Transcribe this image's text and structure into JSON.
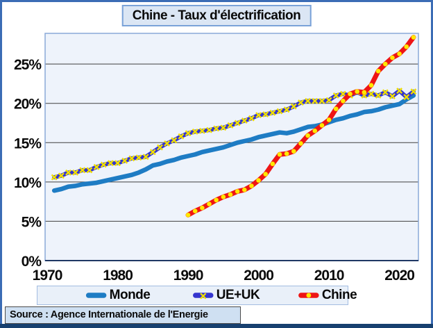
{
  "title": "Chine - Taux d'électrification",
  "source_text": "Source : Agence Internationale de l'Energie",
  "theme": {
    "frame_border": "#3b6cb5",
    "bottom_bar": "#17406f",
    "title_box_bg": "#dbe6f4",
    "title_box_border": "#7aa2d8",
    "plot_bg": "#eef3fb",
    "plot_border": "#8aa9d8",
    "plot_baseline": "#1f3864",
    "gridline": "#3f3f3f",
    "tick_text": "#0a0a0a",
    "legend_bg": "#e9f0f9",
    "legend_border": "#a3bce1",
    "source_bg": "#cfe0f2",
    "source_border": "#4a4a4a"
  },
  "chart_data": {
    "type": "line",
    "title": "Chine - Taux d'électrification",
    "xlabel": "",
    "ylabel": "",
    "x_unit": "year",
    "y_unit": "percent",
    "xlim": [
      1969.7,
      2022.7
    ],
    "ylim": [
      0,
      28.9
    ],
    "x_ticks": [
      1970,
      1980,
      1990,
      2000,
      2010,
      2020
    ],
    "y_ticks": [
      0,
      5,
      10,
      15,
      20,
      25
    ],
    "y_tick_labels": [
      "0%",
      "5%",
      "10%",
      "15%",
      "20%",
      "25%"
    ],
    "grid": true,
    "legend_position": "bottom",
    "series": [
      {
        "name": "Monde",
        "color": "#1e7cc4",
        "line_width": 6.5,
        "marker": "none",
        "marker_color": "",
        "x_start": 1971,
        "x_step": 1,
        "values": [
          8.9,
          9.1,
          9.4,
          9.5,
          9.7,
          9.8,
          9.9,
          10.1,
          10.3,
          10.5,
          10.7,
          10.9,
          11.2,
          11.6,
          12.1,
          12.3,
          12.6,
          12.8,
          13.1,
          13.3,
          13.5,
          13.8,
          14.0,
          14.2,
          14.4,
          14.7,
          15.0,
          15.2,
          15.4,
          15.7,
          15.9,
          16.1,
          16.3,
          16.2,
          16.4,
          16.7,
          17.0,
          17.1,
          17.3,
          17.6,
          17.9,
          18.1,
          18.4,
          18.6,
          18.9,
          19.0,
          19.2,
          19.5,
          19.7,
          19.9,
          20.5,
          21.0
        ]
      },
      {
        "name": "UE+UK",
        "color": "#3535cf",
        "line_width": 6,
        "marker": "x",
        "marker_color": "#f0df00",
        "x_start": 1971,
        "x_step": 1,
        "values": [
          10.6,
          10.8,
          11.2,
          11.2,
          11.5,
          11.5,
          11.9,
          12.2,
          12.4,
          12.4,
          12.7,
          13.0,
          13.1,
          13.2,
          13.8,
          14.4,
          14.9,
          15.3,
          15.8,
          16.2,
          16.4,
          16.5,
          16.6,
          16.8,
          16.9,
          17.2,
          17.5,
          17.8,
          18.1,
          18.5,
          18.6,
          18.8,
          19.0,
          19.2,
          19.6,
          20.1,
          20.3,
          20.3,
          20.3,
          20.4,
          21.0,
          21.2,
          21.0,
          21.4,
          21.0,
          21.2,
          21.0,
          21.4,
          20.9,
          21.6,
          20.8,
          21.5
        ]
      },
      {
        "name": "Chine",
        "color": "#ee1515",
        "line_width": 7,
        "marker": "dot",
        "marker_color": "#ffe800",
        "x_start": 1990,
        "x_step": 1,
        "values": [
          5.8,
          6.3,
          6.7,
          7.2,
          7.7,
          8.1,
          8.4,
          8.8,
          9.0,
          9.5,
          10.2,
          11.0,
          12.3,
          13.5,
          13.6,
          13.9,
          14.9,
          15.9,
          16.5,
          17.2,
          17.9,
          19.3,
          20.3,
          21.2,
          21.5,
          21.4,
          22.3,
          24.1,
          25.0,
          25.8,
          26.3,
          27.2,
          28.4
        ]
      }
    ]
  }
}
